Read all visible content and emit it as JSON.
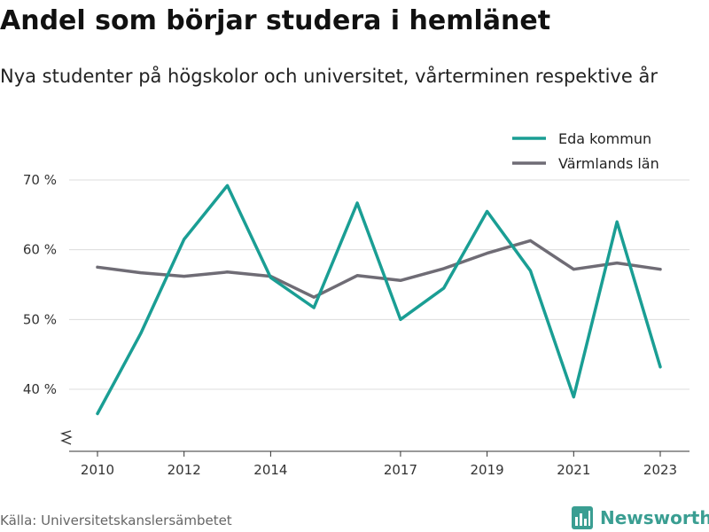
{
  "title": "Andel som börjar studera i hemlänet",
  "subtitle": "Nya studenter på högskolor och universitet, vårterminen respektive år",
  "source": "Källa: Universitetskanslersämbetet",
  "brand": {
    "name": "Newsworthy",
    "icon": "newsworthy-logo-icon",
    "color": "#3a9e92"
  },
  "chart_data": {
    "type": "line",
    "x": [
      2010,
      2011,
      2012,
      2013,
      2014,
      2015,
      2016,
      2017,
      2018,
      2019,
      2020,
      2021,
      2022,
      2023
    ],
    "x_ticks": [
      2010,
      2012,
      2014,
      2017,
      2019,
      2021,
      2023
    ],
    "y_ticks": [
      40,
      50,
      60,
      70
    ],
    "y_tick_labels": [
      "40 %",
      "50 %",
      "60 %",
      "70 %"
    ],
    "ylim": [
      31,
      73
    ],
    "xlim": [
      2009.7,
      2023.7
    ],
    "y_axis_break": true,
    "grid": "horizontal",
    "legend_position": "top-right",
    "series": [
      {
        "name": "Eda kommun",
        "color": "#1a9e94",
        "values": [
          36.5,
          48.0,
          61.5,
          69.2,
          56.0,
          51.7,
          66.7,
          50.0,
          54.5,
          65.5,
          57.0,
          38.9,
          64.0,
          43.2
        ]
      },
      {
        "name": "Värmlands län",
        "color": "#6f6c75",
        "values": [
          57.5,
          56.7,
          56.2,
          56.8,
          56.2,
          53.2,
          56.3,
          55.6,
          57.3,
          59.5,
          61.3,
          57.2,
          58.1,
          57.2
        ]
      }
    ]
  }
}
